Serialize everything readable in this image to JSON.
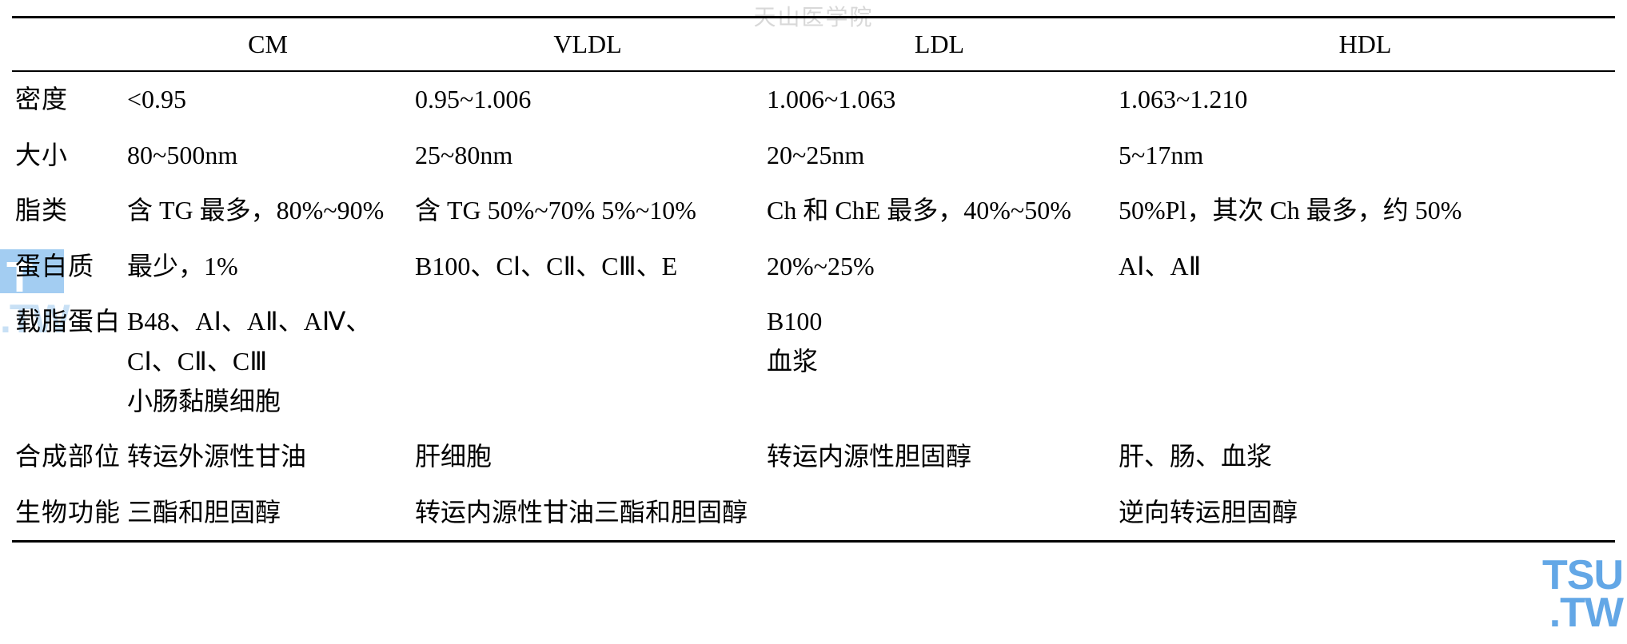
{
  "watermarks": {
    "top": "天山医学院",
    "left_t": "T",
    "left_tw": ".TW",
    "right_tsu": "TSU",
    "right_tw": ".TW"
  },
  "table": {
    "columns": [
      "",
      "CM",
      "VLDL",
      "LDL",
      "HDL"
    ],
    "rows": [
      {
        "head": "密度",
        "cm": "<0.95",
        "vldl": "0.95~1.006",
        "ldl": "1.006~1.063",
        "hdl": "1.063~1.210"
      },
      {
        "head": "大小",
        "cm": "80~500nm",
        "vldl": "25~80nm",
        "ldl": "20~25nm",
        "hdl": "5~17nm"
      },
      {
        "head": "脂类",
        "cm": "含 TG 最多，80%~90%",
        "vldl": "含 TG 50%~70% 5%~10%",
        "ldl": "Ch 和 ChE 最多，40%~50%",
        "hdl": "50%Pl，其次 Ch 最多，约 50%"
      },
      {
        "head": "蛋白质",
        "cm": "最少，1%",
        "vldl": "B100、CⅠ、CⅡ、CⅢ、E",
        "ldl": "20%~25%",
        "hdl": "AⅠ、AⅡ"
      },
      {
        "head": "载脂蛋白",
        "cm": "B48、AⅠ、AⅡ、AⅣ、CⅠ、CⅡ、CⅢ\n小肠黏膜细胞",
        "vldl": "",
        "ldl": "B100\n血浆",
        "hdl": ""
      },
      {
        "head": "合成部位",
        "cm": "转运外源性甘油",
        "vldl": "肝细胞",
        "ldl": "转运内源性胆固醇",
        "hdl": "肝、肠、血浆"
      },
      {
        "head": "生物功能",
        "cm": "三酯和胆固醇",
        "vldl": "转运内源性甘油三酯和胆固醇",
        "ldl": "",
        "hdl": "逆向转运胆固醇"
      }
    ]
  }
}
